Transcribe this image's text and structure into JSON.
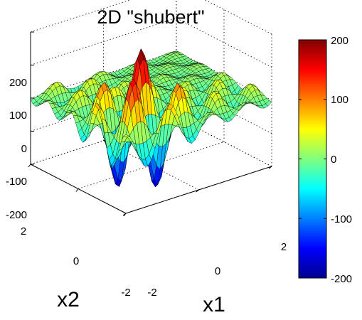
{
  "chart_data": {
    "type": "surface",
    "title": "2D \"shubert\"",
    "xlabel": "x1",
    "ylabel": "x2",
    "zlabel": "",
    "x_range": [
      -2,
      2
    ],
    "y_range": [
      -2,
      2
    ],
    "z_range": [
      -200,
      200
    ],
    "x_ticks": [
      "-2",
      "0",
      "2"
    ],
    "y_ticks": [
      "-2",
      "0",
      "2"
    ],
    "z_ticks": [
      "-200",
      "-100",
      "0",
      "100",
      "200"
    ],
    "colorbar": {
      "colormap": "jet",
      "min": -200,
      "max": 200,
      "ticks": [
        "200",
        "100",
        "0",
        "-100",
        "-200"
      ]
    },
    "function": "shubert",
    "grid": true
  }
}
